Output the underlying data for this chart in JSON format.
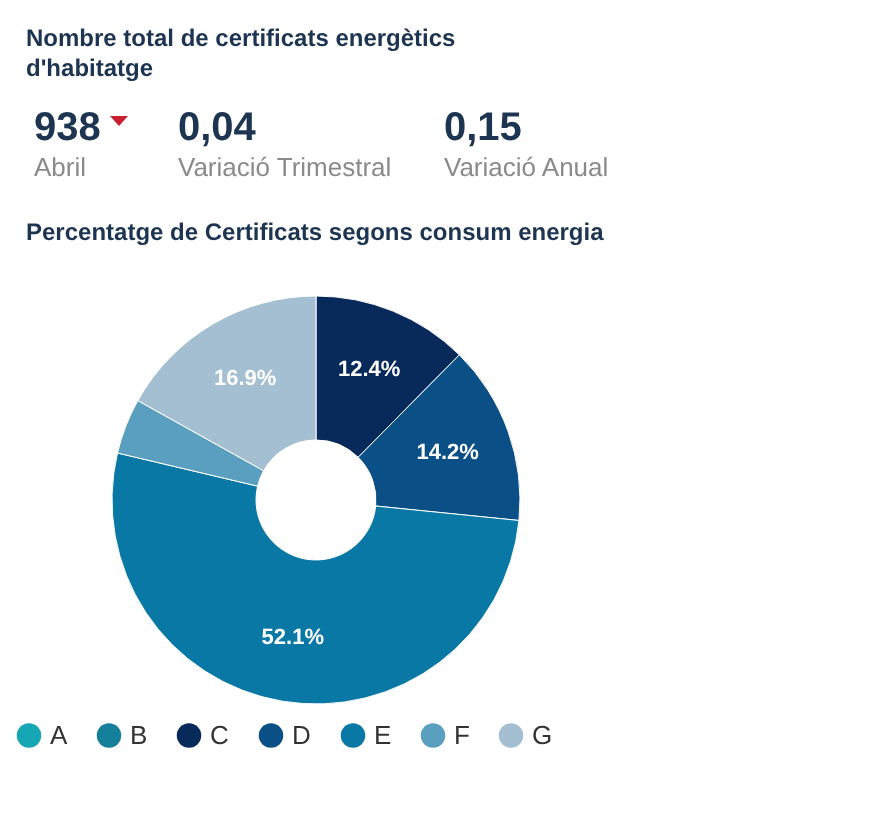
{
  "chart_data": [
    {
      "type": "other",
      "title": "Nombre total de certificats energètics d'habitatge",
      "annotations": [
        "938",
        "Abril",
        "0,04",
        "Variació Trimestral",
        "0,15",
        "Variació Anual"
      ]
    },
    {
      "type": "donut",
      "title": "Percentatge de Certificats segons consum energia",
      "categories": [
        "A",
        "B",
        "C",
        "D",
        "E",
        "F",
        "G"
      ],
      "values": [
        0,
        0,
        12.4,
        14.2,
        52.1,
        4.4,
        16.9
      ],
      "colors": [
        "#17a6b3",
        "#15809a",
        "#072a5a",
        "#0a4f86",
        "#0a78a5",
        "#5a9fc0",
        "#a3bfd1"
      ],
      "value_labels": [
        null,
        null,
        "12.4%",
        "14.2%",
        "52.1%",
        null,
        "16.9%"
      ],
      "legend": "bottom"
    }
  ]
}
